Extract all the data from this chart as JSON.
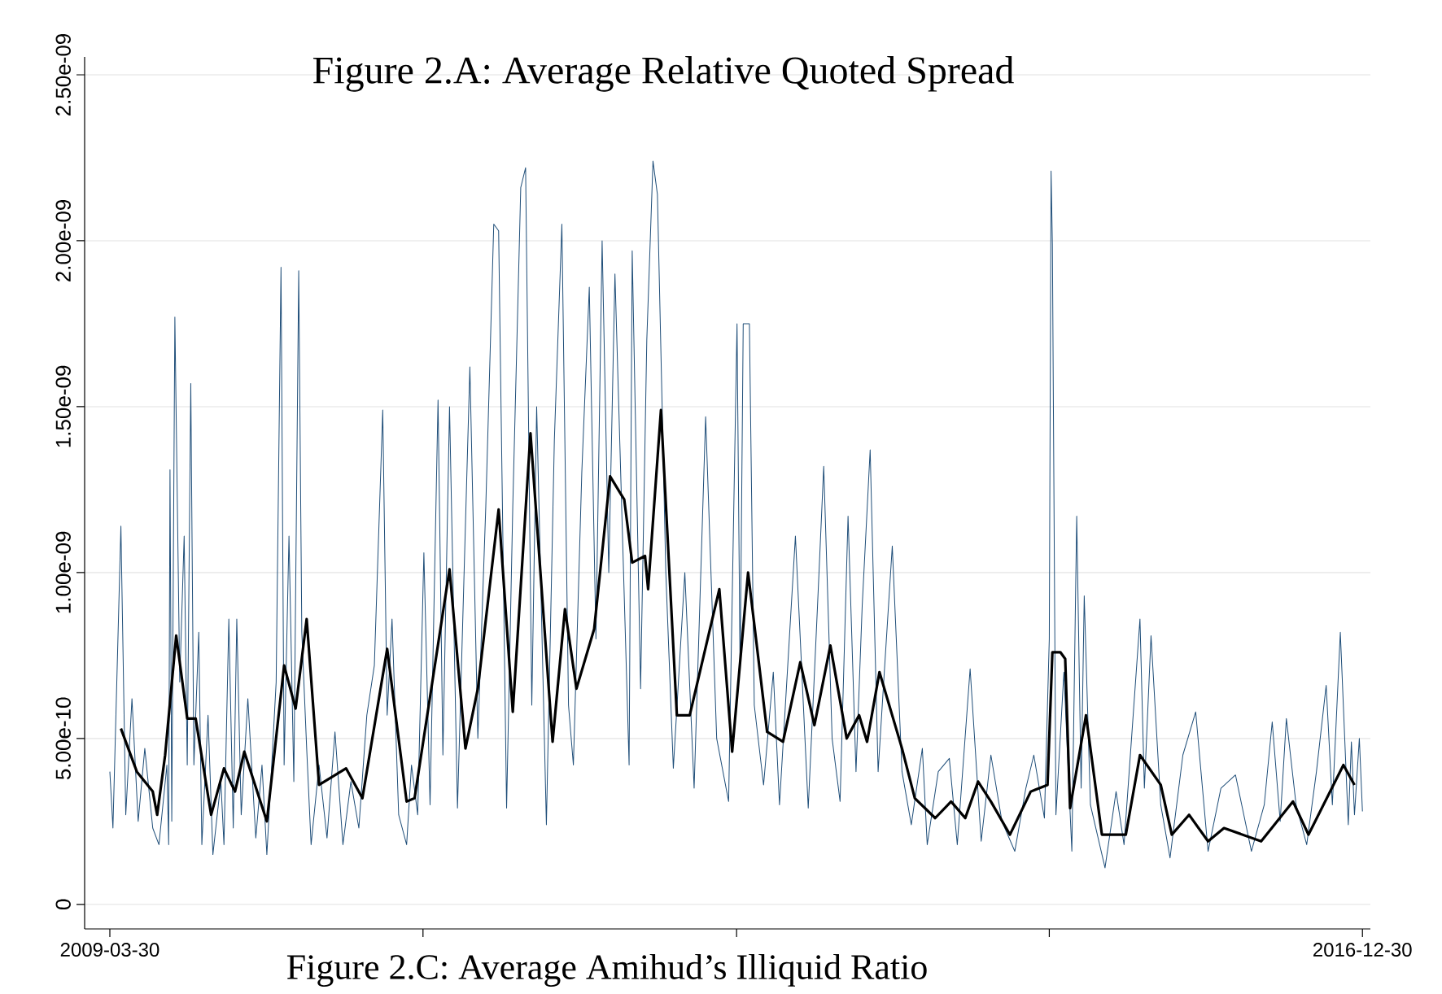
{
  "chart_data": {
    "type": "line",
    "title": "Figure 2.A: Average Relative Quoted Spread",
    "annotations": [
      "Figure 2.C: Average Amihud’s Illiquid Ratio"
    ],
    "xlim": [
      "2009-02-01",
      "2017-01-17"
    ],
    "xticks": [
      "2009-03-30",
      {
        "value": "2011-03-08",
        "label": null
      },
      {
        "value": "2013-02-14",
        "label": null
      },
      {
        "value": "2015-01-22",
        "label": null
      },
      "2016-12-30"
    ],
    "ylim": [
      -7.4e-11,
      2.554e-09
    ],
    "yticks": [
      0,
      {
        "value": 5e-10,
        "label": "5.00e-10"
      },
      {
        "value": 1e-09,
        "label": "1.00e-09"
      },
      {
        "value": 1.5e-09,
        "label": "1.50e-09"
      },
      {
        "value": 2e-09,
        "label": "2.00e-09"
      },
      {
        "value": 2.5e-09,
        "label": "2.50e-09"
      }
    ],
    "grid": "y",
    "series": [
      {
        "color": "#1f4e79",
        "x": [
          "2009-03-30",
          "2009-04-06",
          "2009-04-24",
          "2009-05-05",
          "2009-05-19",
          "2009-06-02",
          "2009-06-17",
          "2009-07-05",
          "2009-07-19",
          "2009-08-06",
          "2009-08-10",
          "2009-08-13",
          "2009-08-17",
          "2009-08-24",
          "2009-09-04",
          "2009-09-14",
          "2009-09-21",
          "2009-09-29",
          "2009-10-06",
          "2009-10-17",
          "2009-10-24",
          "2009-11-07",
          "2009-11-18",
          "2009-12-06",
          "2009-12-13",
          "2009-12-24",
          "2010-01-03",
          "2010-01-11",
          "2010-01-21",
          "2010-02-05",
          "2010-02-23",
          "2010-03-09",
          "2010-03-20",
          "2010-03-31",
          "2010-04-10",
          "2010-04-21",
          "2010-04-28",
          "2010-05-09",
          "2010-05-20",
          "2010-05-31",
          "2010-06-07",
          "2010-06-18",
          "2010-06-28",
          "2010-07-16",
          "2010-08-03",
          "2010-08-21",
          "2010-09-08",
          "2010-09-26",
          "2010-10-14",
          "2010-11-01",
          "2010-11-18",
          "2010-12-07",
          "2010-12-17",
          "2010-12-28",
          "2011-01-12",
          "2011-01-30",
          "2011-02-10",
          "2011-02-24",
          "2011-03-10",
          "2011-03-24",
          "2011-04-11",
          "2011-04-22",
          "2011-05-07",
          "2011-05-25",
          "2011-06-22",
          "2011-07-10",
          "2011-07-28",
          "2011-08-15",
          "2011-08-26",
          "2011-09-13",
          "2011-09-27",
          "2011-10-15",
          "2011-10-26",
          "2011-11-09",
          "2011-11-20",
          "2011-12-12",
          "2011-12-30",
          "2012-01-16",
          "2012-01-31",
          "2012-02-11",
          "2012-03-01",
          "2012-03-18",
          "2012-04-02",
          "2012-04-16",
          "2012-05-01",
          "2012-05-15",
          "2012-06-16",
          "2012-06-23",
          "2012-07-12",
          "2012-07-26",
          "2012-08-09",
          "2012-08-19",
          "2012-09-07",
          "2012-09-24",
          "2012-10-20",
          "2012-11-10",
          "2012-12-06",
          "2012-12-31",
          "2013-01-27",
          "2013-02-15",
          "2013-02-22",
          "2013-03-01",
          "2013-03-15",
          "2013-03-26",
          "2013-04-16",
          "2013-05-08",
          "2013-05-22",
          "2013-06-27",
          "2013-07-26",
          "2013-08-16",
          "2013-08-30",
          "2013-09-18",
          "2013-10-06",
          "2013-10-24",
          "2013-11-11",
          "2013-11-25",
          "2013-12-13",
          "2013-12-31",
          "2014-01-14",
          "2014-02-01",
          "2014-02-23",
          "2014-03-16",
          "2014-04-10",
          "2014-04-21",
          "2014-05-16",
          "2014-06-10",
          "2014-06-28",
          "2014-07-27",
          "2014-08-21",
          "2014-09-12",
          "2014-10-07",
          "2014-11-05",
          "2014-11-30",
          "2014-12-18",
          "2015-01-11",
          "2015-01-22",
          "2015-01-26",
          "2015-01-29",
          "2015-02-06",
          "2015-02-24",
          "2015-03-14",
          "2015-03-25",
          "2015-04-04",
          "2015-04-11",
          "2015-04-25",
          "2015-05-28",
          "2015-06-22",
          "2015-07-10",
          "2015-08-15",
          "2015-08-25",
          "2015-09-09",
          "2015-10-01",
          "2015-10-22",
          "2015-11-20",
          "2015-12-19",
          "2016-01-16",
          "2016-02-14",
          "2016-03-18",
          "2016-04-23",
          "2016-05-22",
          "2016-06-09",
          "2016-06-27",
          "2016-07-11",
          "2016-08-02",
          "2016-08-26",
          "2016-09-17",
          "2016-10-09",
          "2016-10-23",
          "2016-11-10",
          "2016-11-28",
          "2016-12-05",
          "2016-12-12",
          "2016-12-23",
          "2016-12-30"
        ],
        "values": [
          4e-10,
          2.3e-10,
          1.14e-09,
          2.7e-10,
          6.2e-10,
          2.5e-10,
          4.7e-10,
          2.3e-10,
          1.8e-10,
          4.2e-10,
          1.8e-10,
          1.31e-09,
          2.5e-10,
          1.77e-09,
          6.7e-10,
          1.11e-09,
          4.2e-10,
          1.57e-09,
          4.2e-10,
          8.2e-10,
          1.8e-10,
          5.7e-10,
          1.5e-10,
          3.7e-10,
          1.8e-10,
          8.6e-10,
          2.3e-10,
          8.6e-10,
          2.7e-10,
          6.2e-10,
          2e-10,
          4.2e-10,
          1.5e-10,
          4.2e-10,
          6.7e-10,
          1.92e-09,
          4.2e-10,
          1.11e-09,
          3.7e-10,
          1.91e-09,
          8.2e-10,
          4.7e-10,
          1.8e-10,
          4.2e-10,
          2e-10,
          5.2e-10,
          1.8e-10,
          3.7e-10,
          2.3e-10,
          5.7e-10,
          7.2e-10,
          1.49e-09,
          5.7e-10,
          8.6e-10,
          2.7e-10,
          1.8e-10,
          4.2e-10,
          2.7e-10,
          1.06e-09,
          3e-10,
          1.52e-09,
          4.5e-10,
          1.5e-09,
          2.9e-10,
          1.62e-09,
          5e-10,
          1.2e-09,
          2.05e-09,
          2.03e-09,
          2.9e-10,
          1.2e-09,
          2.16e-09,
          2.22e-09,
          6e-10,
          1.5e-09,
          2.4e-10,
          1.4e-09,
          2.05e-09,
          6e-10,
          4.2e-10,
          1.3e-09,
          1.86e-09,
          8e-10,
          2e-09,
          1e-09,
          1.9e-09,
          4.2e-10,
          1.97e-09,
          6.5e-10,
          1.7e-09,
          2.24e-09,
          2.14e-09,
          1e-09,
          4.1e-10,
          1e-09,
          3.5e-10,
          1.47e-09,
          5e-10,
          3.1e-10,
          1.75e-09,
          7e-10,
          1.75e-09,
          1.75e-09,
          6e-10,
          3.6e-10,
          7e-10,
          3e-10,
          1.11e-09,
          2.9e-10,
          9e-10,
          1.32e-09,
          5e-10,
          3.1e-10,
          1.17e-09,
          4e-10,
          9e-10,
          1.37e-09,
          4e-10,
          7e-10,
          1.08e-09,
          4e-10,
          2.4e-10,
          4.7e-10,
          1.8e-10,
          4e-10,
          4.4e-10,
          1.8e-10,
          7.1e-10,
          1.9e-10,
          4.5e-10,
          2.5e-10,
          1.6e-10,
          3.5e-10,
          4.5e-10,
          2.6e-10,
          8e-10,
          2.21e-09,
          1.99e-09,
          2.7e-10,
          7e-10,
          1.6e-10,
          1.17e-09,
          3.5e-10,
          9.3e-10,
          3e-10,
          1.1e-10,
          3.4e-10,
          1.8e-10,
          8.6e-10,
          3.5e-10,
          8.1e-10,
          3e-10,
          1.4e-10,
          4.5e-10,
          5.8e-10,
          1.6e-10,
          3.5e-10,
          3.9e-10,
          1.6e-10,
          3e-10,
          5.5e-10,
          2.5e-10,
          5.6e-10,
          3e-10,
          1.8e-10,
          4e-10,
          6.6e-10,
          3e-10,
          8.2e-10,
          2.4e-10,
          4.9e-10,
          2.7e-10,
          5e-10,
          2.8e-10
        ]
      },
      {
        "color": "#000000",
        "x": [
          "2009-04-24",
          "2009-05-30",
          "2009-07-05",
          "2009-07-15",
          "2009-08-02",
          "2009-08-27",
          "2009-09-21",
          "2009-10-10",
          "2009-11-14",
          "2009-12-13",
          "2010-01-07",
          "2010-01-28",
          "2010-03-20",
          "2010-04-28",
          "2010-05-24",
          "2010-06-18",
          "2010-07-16",
          "2010-09-15",
          "2010-10-22",
          "2010-12-17",
          "2011-01-30",
          "2011-02-17",
          "2011-05-07",
          "2011-06-12",
          "2011-07-10",
          "2011-08-26",
          "2011-09-27",
          "2011-11-06",
          "2011-12-26",
          "2012-01-23",
          "2012-02-18",
          "2012-03-29",
          "2012-05-04",
          "2012-06-05",
          "2012-06-23",
          "2012-07-22",
          "2012-07-29",
          "2012-08-27",
          "2012-10-02",
          "2012-10-31",
          "2013-01-06",
          "2013-02-04",
          "2013-03-12",
          "2013-04-24",
          "2013-05-30",
          "2013-07-08",
          "2013-08-09",
          "2013-09-14",
          "2013-10-21",
          "2013-11-18",
          "2013-12-06",
          "2014-01-03",
          "2014-02-23",
          "2014-03-24",
          "2014-05-09",
          "2014-06-14",
          "2014-07-16",
          "2014-08-14",
          "2014-09-12",
          "2014-10-25",
          "2014-12-11",
          "2015-01-18",
          "2015-01-29",
          "2015-02-16",
          "2015-02-27",
          "2015-03-10",
          "2015-04-15",
          "2015-05-21",
          "2015-07-14",
          "2015-08-15",
          "2015-10-01",
          "2015-10-26",
          "2015-12-04",
          "2016-01-16",
          "2016-02-21",
          "2016-05-15",
          "2016-07-26",
          "2016-08-30",
          "2016-11-17",
          "2016-12-12"
        ],
        "values": [
          5.3e-10,
          4e-10,
          3.4e-10,
          2.7e-10,
          4.5e-10,
          8.1e-10,
          5.6e-10,
          5.6e-10,
          2.7e-10,
          4.1e-10,
          3.4e-10,
          4.6e-10,
          2.5e-10,
          7.2e-10,
          5.9e-10,
          8.6e-10,
          3.6e-10,
          4.1e-10,
          3.2e-10,
          7.7e-10,
          3.1e-10,
          3.2e-10,
          1.01e-09,
          4.7e-10,
          6.5e-10,
          1.19e-09,
          5.8e-10,
          1.42e-09,
          4.9e-10,
          8.9e-10,
          6.5e-10,
          8.3e-10,
          1.29e-09,
          1.22e-09,
          1.03e-09,
          1.05e-09,
          9.5e-10,
          1.49e-09,
          5.7e-10,
          5.7e-10,
          9.5e-10,
          4.6e-10,
          1e-09,
          5.2e-10,
          4.9e-10,
          7.3e-10,
          5.4e-10,
          7.8e-10,
          5e-10,
          5.7e-10,
          4.9e-10,
          7e-10,
          4.7e-10,
          3.2e-10,
          2.6e-10,
          3.1e-10,
          2.6e-10,
          3.7e-10,
          3.1e-10,
          2.1e-10,
          3.4e-10,
          3.6e-10,
          7.6e-10,
          7.6e-10,
          7.4e-10,
          2.9e-10,
          5.7e-10,
          2.1e-10,
          2.1e-10,
          4.5e-10,
          3.6e-10,
          2.1e-10,
          2.7e-10,
          1.9e-10,
          2.3e-10,
          1.9e-10,
          3.1e-10,
          2.1e-10,
          4.2e-10,
          3.6e-10
        ]
      }
    ]
  }
}
